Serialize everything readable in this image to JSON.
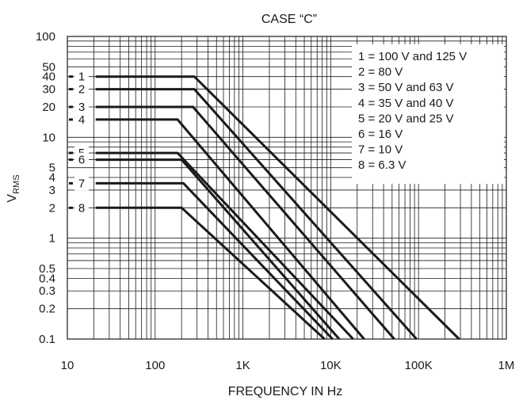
{
  "chart_data": {
    "type": "line",
    "title": "CASE “C”",
    "xlabel": "FREQUENCY IN Hz",
    "ylabel_main": "V",
    "ylabel_sub": "RMS",
    "x_scale": "log",
    "y_scale": "log",
    "xlim": [
      10,
      1000000
    ],
    "ylim": [
      0.1,
      100
    ],
    "grid": true,
    "x_ticks": [
      {
        "value": 10,
        "label": "10"
      },
      {
        "value": 100,
        "label": "100"
      },
      {
        "value": 1000,
        "label": "1K"
      },
      {
        "value": 10000,
        "label": "10K"
      },
      {
        "value": 100000,
        "label": "100K"
      },
      {
        "value": 1000000,
        "label": "1M"
      }
    ],
    "y_ticks": [
      {
        "value": 0.1,
        "label": "0.1"
      },
      {
        "value": 0.2,
        "label": "0.2"
      },
      {
        "value": 0.3,
        "label": "0.3"
      },
      {
        "value": 0.4,
        "label": "0.4"
      },
      {
        "value": 0.5,
        "label": "0.5"
      },
      {
        "value": 1,
        "label": "1"
      },
      {
        "value": 2,
        "label": "2"
      },
      {
        "value": 3,
        "label": "3"
      },
      {
        "value": 4,
        "label": "4"
      },
      {
        "value": 5,
        "label": "5"
      },
      {
        "value": 10,
        "label": "10"
      },
      {
        "value": 20,
        "label": "20"
      },
      {
        "value": 30,
        "label": "30"
      },
      {
        "value": 40,
        "label": "40"
      },
      {
        "value": 50,
        "label": "50"
      },
      {
        "value": 100,
        "label": "100"
      }
    ],
    "legend_position": "top-right",
    "series": [
      {
        "label": "1",
        "legend": "1 = 100 V and 125 V",
        "x": [
          21,
          280,
          290000
        ],
        "y": [
          40,
          40,
          0.1
        ]
      },
      {
        "label": "2",
        "legend": "2 = 80 V",
        "x": [
          21,
          280,
          95000
        ],
        "y": [
          30,
          30,
          0.1
        ]
      },
      {
        "label": "3",
        "legend": "3 = 50 V and 63 V",
        "x": [
          21,
          270,
          53000
        ],
        "y": [
          20,
          20,
          0.1
        ]
      },
      {
        "label": "4",
        "legend": "4 = 35 V and 40 V",
        "x": [
          21,
          180,
          24000
        ],
        "y": [
          15,
          15,
          0.1
        ]
      },
      {
        "label": "5",
        "legend": "5 = 20 V and 25 V",
        "x": [
          21,
          180,
          18000
        ],
        "y": [
          7,
          7,
          0.1
        ]
      },
      {
        "label": "6",
        "legend": "6 = 16 V",
        "x": [
          21,
          200,
          12500
        ],
        "y": [
          6,
          6,
          0.1
        ]
      },
      {
        "label": "7",
        "legend": "7 = 10 V",
        "x": [
          21,
          210,
          10500
        ],
        "y": [
          3.5,
          3.5,
          0.1
        ]
      },
      {
        "label": "8",
        "legend": "8 = 6.3 V",
        "x": [
          21,
          200,
          8500
        ],
        "y": [
          2,
          2,
          0.1
        ]
      }
    ]
  }
}
